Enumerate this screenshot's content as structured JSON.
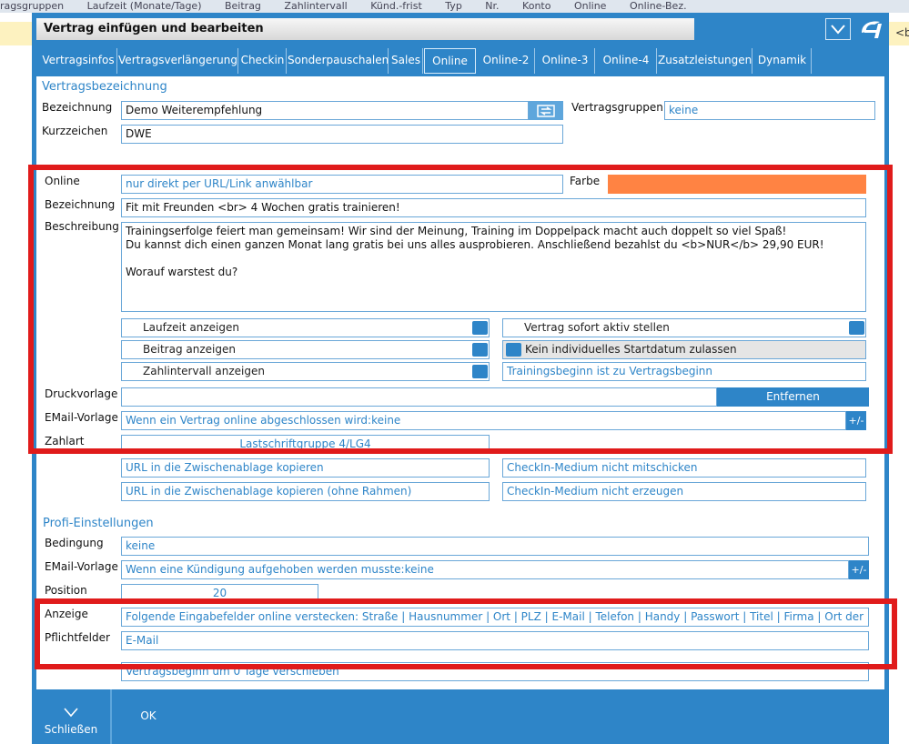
{
  "background": {
    "header_items": [
      "ragsgruppen",
      "Laufzeit (Monate/Tage)",
      "Beitrag",
      "Zahlintervall",
      "Künd.-frist",
      "Typ",
      "Nr.",
      "Konto",
      "Online",
      "Online-Bez."
    ],
    "right_text": "<b"
  },
  "dialog": {
    "title": "Vertrag einfügen und bearbeiten",
    "tabs": [
      "Vertragsinfos",
      "Vertragsverlängerung",
      "Checkin",
      "Sonderpauschalen",
      "Sales",
      "Online",
      "Online-2",
      "Online-3",
      "Online-4",
      "Zusatzleistungen",
      "Dynamik"
    ],
    "active_tab": "Online"
  },
  "vertragsbezeichnung": {
    "section_title": "Vertragsbezeichnung",
    "bezeichnung_label": "Bezeichnung",
    "bezeichnung_value": "Demo Weiterempfehlung",
    "vertragsgruppen_label": "Vertragsgruppen",
    "vertragsgruppen_value": "keine",
    "kurzzeichen_label": "Kurzzeichen",
    "kurzzeichen_value": "DWE"
  },
  "online": {
    "online_label": "Online",
    "online_value": "nur direkt per URL/Link anwählbar",
    "farbe_label": "Farbe",
    "farbe_color": "#ff8343",
    "bezeichnung_label": "Bezeichnung",
    "bezeichnung_value": "Fit mit Freunden <br> 4 Wochen gratis trainieren!",
    "beschreibung_label": "Beschreibung",
    "beschreibung_value": "Trainingserfolge feiert man gemeinsam! Wir sind der Meinung, Training im Doppelpack macht auch doppelt so viel Spaß!\nDu kannst dich einen ganzen Monat lang gratis bei uns alles ausprobieren. Anschließend bezahlst du <b>NUR</b> 29,90 EUR!\n\nWorauf warstest du?",
    "checks": {
      "laufzeit": "Laufzeit anzeigen",
      "beitrag": "Beitrag anzeigen",
      "zahlintervall": "Zahlintervall anzeigen",
      "sofort_aktiv": "Vertrag sofort aktiv stellen",
      "startdatum": "Kein individuelles Startdatum zulassen"
    },
    "trainingsbeginn": "Trainingsbeginn ist zu Vertragsbeginn",
    "druckvorlage_label": "Druckvorlage",
    "entfernen": "Entfernen",
    "email_label": "EMail-Vorlage",
    "email_value": "Wenn ein Vertrag online abgeschlossen wird:keine",
    "plusminus": "+/-",
    "zahlart_label": "Zahlart",
    "zahlart_value": "Lastschriftgruppe 4/LG4",
    "url_copy": "URL in die Zwischenablage kopieren",
    "url_copy_frameless": "URL in die Zwischenablage kopieren (ohne Rahmen)",
    "checkin_no_send": "CheckIn-Medium nicht mitschicken",
    "checkin_no_create": "CheckIn-Medium nicht erzeugen"
  },
  "profi": {
    "section_title": "Profi-Einstellungen",
    "bedingung_label": "Bedingung",
    "bedingung_value": "keine",
    "email_label": "EMail-Vorlage",
    "email_value": "Wenn eine Kündigung aufgehoben werden musste:keine",
    "plusminus": "+/-",
    "position_label": "Position",
    "position_value": "20",
    "anzeige_label": "Anzeige",
    "anzeige_value": "Folgende Eingabefelder online verstecken: Straße | Hausnummer | Ort | PLZ | E-Mail | Telefon | Handy | Passwort | Titel | Firma | Ort der Firma",
    "pflicht_label": "Pflichtfelder",
    "pflicht_value": "E-Mail",
    "vertragsbeginn_value": "Vertragsbeginn um 0 Tage verschieben"
  },
  "buttons": {
    "close": "Schließen",
    "ok": "OK"
  },
  "colors": {
    "accent": "#2e85c8",
    "highlight": "#e01b1b"
  }
}
